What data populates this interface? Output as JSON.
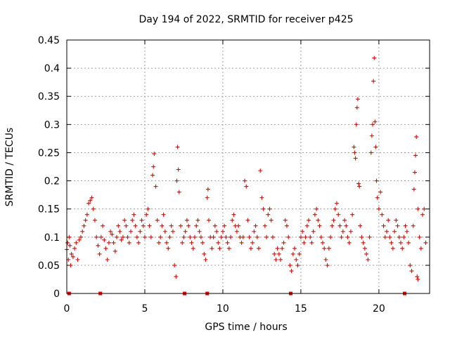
{
  "chart_data": {
    "type": "scatter",
    "title": "Day 194 of 2022, SRMTID for receiver p425",
    "xlabel": "GPS time / hours",
    "ylabel": "SRMTID / TECUs",
    "xlim": [
      0,
      23.25
    ],
    "ylim": [
      0,
      0.45
    ],
    "xticks": [
      0,
      5,
      10,
      15,
      20
    ],
    "xtick_labels": [
      "0",
      "5",
      "10",
      "15",
      "20"
    ],
    "yticks": [
      0,
      0.05,
      0.1,
      0.15,
      0.2,
      0.25,
      0.3,
      0.35,
      0.4,
      0.45
    ],
    "ytick_labels": [
      "0",
      "0.05",
      "0.1",
      "0.15",
      "0.2",
      "0.25",
      "0.3",
      "0.35",
      "0.4",
      "0.45"
    ],
    "grid": true,
    "marker": "plus",
    "color": "#e60000",
    "series": [
      {
        "name": "SRMTID",
        "points": [
          [
            0.0,
            0.078
          ],
          [
            0.05,
            0.09
          ],
          [
            0.1,
            0.06
          ],
          [
            0.15,
            0.1
          ],
          [
            0.2,
            0.085
          ],
          [
            0.25,
            0.05
          ],
          [
            0.3,
            0.07
          ],
          [
            0.4,
            0.065
          ],
          [
            0.5,
            0.08
          ],
          [
            0.6,
            0.09
          ],
          [
            0.7,
            0.06
          ],
          [
            0.8,
            0.095
          ],
          [
            0.9,
            0.1
          ],
          [
            1.0,
            0.11
          ],
          [
            1.1,
            0.12
          ],
          [
            1.2,
            0.13
          ],
          [
            1.3,
            0.14
          ],
          [
            1.4,
            0.16
          ],
          [
            1.5,
            0.165
          ],
          [
            1.6,
            0.17
          ],
          [
            1.7,
            0.15
          ],
          [
            1.8,
            0.13
          ],
          [
            1.9,
            0.1
          ],
          [
            2.0,
            0.085
          ],
          [
            2.1,
            0.07
          ],
          [
            2.2,
            0.1
          ],
          [
            2.3,
            0.12
          ],
          [
            2.4,
            0.095
          ],
          [
            2.5,
            0.08
          ],
          [
            2.6,
            0.06
          ],
          [
            2.7,
            0.09
          ],
          [
            2.8,
            0.11
          ],
          [
            2.9,
            0.105
          ],
          [
            3.0,
            0.09
          ],
          [
            3.1,
            0.075
          ],
          [
            3.2,
            0.1
          ],
          [
            3.3,
            0.12
          ],
          [
            3.4,
            0.11
          ],
          [
            3.5,
            0.095
          ],
          [
            3.6,
            0.1
          ],
          [
            3.7,
            0.13
          ],
          [
            3.8,
            0.12
          ],
          [
            3.9,
            0.1
          ],
          [
            4.0,
            0.09
          ],
          [
            4.1,
            0.11
          ],
          [
            4.2,
            0.13
          ],
          [
            4.3,
            0.14
          ],
          [
            4.4,
            0.12
          ],
          [
            4.5,
            0.1
          ],
          [
            4.6,
            0.09
          ],
          [
            4.7,
            0.11
          ],
          [
            4.8,
            0.13
          ],
          [
            4.9,
            0.12
          ],
          [
            5.0,
            0.1
          ],
          [
            5.1,
            0.14
          ],
          [
            5.2,
            0.15
          ],
          [
            5.3,
            0.12
          ],
          [
            5.4,
            0.1
          ],
          [
            5.5,
            0.21
          ],
          [
            5.55,
            0.225
          ],
          [
            5.6,
            0.248
          ],
          [
            5.7,
            0.19
          ],
          [
            5.8,
            0.13
          ],
          [
            5.9,
            0.09
          ],
          [
            6.0,
            0.1
          ],
          [
            6.1,
            0.12
          ],
          [
            6.2,
            0.14
          ],
          [
            6.3,
            0.11
          ],
          [
            6.4,
            0.09
          ],
          [
            6.5,
            0.08
          ],
          [
            6.6,
            0.1
          ],
          [
            6.7,
            0.12
          ],
          [
            6.8,
            0.11
          ],
          [
            6.9,
            0.05
          ],
          [
            7.0,
            0.03
          ],
          [
            7.05,
            0.2
          ],
          [
            7.1,
            0.26
          ],
          [
            7.15,
            0.22
          ],
          [
            7.2,
            0.18
          ],
          [
            7.3,
            0.12
          ],
          [
            7.4,
            0.09
          ],
          [
            7.5,
            0.1
          ],
          [
            7.6,
            0.11
          ],
          [
            7.7,
            0.13
          ],
          [
            7.8,
            0.12
          ],
          [
            7.9,
            0.1
          ],
          [
            8.0,
            0.09
          ],
          [
            8.1,
            0.08
          ],
          [
            8.2,
            0.1
          ],
          [
            8.3,
            0.12
          ],
          [
            8.4,
            0.13
          ],
          [
            8.5,
            0.11
          ],
          [
            8.6,
            0.1
          ],
          [
            8.7,
            0.09
          ],
          [
            8.8,
            0.07
          ],
          [
            8.9,
            0.06
          ],
          [
            9.0,
            0.17
          ],
          [
            9.05,
            0.185
          ],
          [
            9.1,
            0.13
          ],
          [
            9.2,
            0.1
          ],
          [
            9.3,
            0.08
          ],
          [
            9.4,
            0.1
          ],
          [
            9.5,
            0.12
          ],
          [
            9.6,
            0.11
          ],
          [
            9.7,
            0.09
          ],
          [
            9.8,
            0.08
          ],
          [
            9.9,
            0.1
          ],
          [
            10.0,
            0.11
          ],
          [
            10.1,
            0.12
          ],
          [
            10.2,
            0.1
          ],
          [
            10.3,
            0.09
          ],
          [
            10.4,
            0.08
          ],
          [
            10.5,
            0.1
          ],
          [
            10.6,
            0.13
          ],
          [
            10.7,
            0.14
          ],
          [
            10.8,
            0.12
          ],
          [
            10.9,
            0.11
          ],
          [
            11.0,
            0.12
          ],
          [
            11.1,
            0.1
          ],
          [
            11.2,
            0.09
          ],
          [
            11.3,
            0.1
          ],
          [
            11.4,
            0.2
          ],
          [
            11.5,
            0.19
          ],
          [
            11.6,
            0.13
          ],
          [
            11.7,
            0.1
          ],
          [
            11.8,
            0.08
          ],
          [
            11.9,
            0.09
          ],
          [
            12.0,
            0.11
          ],
          [
            12.1,
            0.12
          ],
          [
            12.2,
            0.1
          ],
          [
            12.3,
            0.08
          ],
          [
            12.4,
            0.218
          ],
          [
            12.5,
            0.17
          ],
          [
            12.6,
            0.15
          ],
          [
            12.7,
            0.12
          ],
          [
            12.8,
            0.1
          ],
          [
            12.9,
            0.14
          ],
          [
            13.0,
            0.15
          ],
          [
            13.1,
            0.13
          ],
          [
            13.2,
            0.1
          ],
          [
            13.3,
            0.07
          ],
          [
            13.4,
            0.06
          ],
          [
            13.5,
            0.08
          ],
          [
            13.6,
            0.07
          ],
          [
            13.7,
            0.06
          ],
          [
            13.8,
            0.08
          ],
          [
            13.9,
            0.09
          ],
          [
            14.0,
            0.13
          ],
          [
            14.1,
            0.12
          ],
          [
            14.2,
            0.1
          ],
          [
            14.3,
            0.05
          ],
          [
            14.4,
            0.04
          ],
          [
            14.5,
            0.07
          ],
          [
            14.6,
            0.08
          ],
          [
            14.7,
            0.06
          ],
          [
            14.8,
            0.05
          ],
          [
            14.9,
            0.07
          ],
          [
            15.0,
            0.1
          ],
          [
            15.1,
            0.11
          ],
          [
            15.2,
            0.09
          ],
          [
            15.3,
            0.1
          ],
          [
            15.4,
            0.12
          ],
          [
            15.5,
            0.13
          ],
          [
            15.6,
            0.1
          ],
          [
            15.7,
            0.09
          ],
          [
            15.8,
            0.11
          ],
          [
            15.9,
            0.14
          ],
          [
            16.0,
            0.15
          ],
          [
            16.1,
            0.13
          ],
          [
            16.2,
            0.12
          ],
          [
            16.3,
            0.1
          ],
          [
            16.4,
            0.09
          ],
          [
            16.5,
            0.08
          ],
          [
            16.6,
            0.06
          ],
          [
            16.7,
            0.05
          ],
          [
            16.8,
            0.08
          ],
          [
            16.9,
            0.1
          ],
          [
            17.0,
            0.12
          ],
          [
            17.1,
            0.13
          ],
          [
            17.2,
            0.15
          ],
          [
            17.3,
            0.16
          ],
          [
            17.4,
            0.14
          ],
          [
            17.5,
            0.12
          ],
          [
            17.6,
            0.1
          ],
          [
            17.7,
            0.11
          ],
          [
            17.8,
            0.13
          ],
          [
            17.9,
            0.12
          ],
          [
            18.0,
            0.1
          ],
          [
            18.1,
            0.09
          ],
          [
            18.2,
            0.11
          ],
          [
            18.3,
            0.14
          ],
          [
            18.4,
            0.26
          ],
          [
            18.45,
            0.25
          ],
          [
            18.5,
            0.24
          ],
          [
            18.55,
            0.3
          ],
          [
            18.6,
            0.33
          ],
          [
            18.65,
            0.345
          ],
          [
            18.7,
            0.195
          ],
          [
            18.75,
            0.19
          ],
          [
            18.8,
            0.12
          ],
          [
            18.9,
            0.1
          ],
          [
            19.0,
            0.09
          ],
          [
            19.1,
            0.08
          ],
          [
            19.2,
            0.07
          ],
          [
            19.3,
            0.06
          ],
          [
            19.4,
            0.1
          ],
          [
            19.5,
            0.25
          ],
          [
            19.55,
            0.28
          ],
          [
            19.6,
            0.3
          ],
          [
            19.65,
            0.377
          ],
          [
            19.7,
            0.418
          ],
          [
            19.75,
            0.305
          ],
          [
            19.8,
            0.26
          ],
          [
            19.85,
            0.2
          ],
          [
            19.9,
            0.17
          ],
          [
            20.0,
            0.15
          ],
          [
            20.1,
            0.18
          ],
          [
            20.2,
            0.14
          ],
          [
            20.3,
            0.12
          ],
          [
            20.4,
            0.1
          ],
          [
            20.5,
            0.11
          ],
          [
            20.6,
            0.13
          ],
          [
            20.7,
            0.1
          ],
          [
            20.8,
            0.09
          ],
          [
            20.9,
            0.08
          ],
          [
            21.0,
            0.11
          ],
          [
            21.1,
            0.13
          ],
          [
            21.2,
            0.12
          ],
          [
            21.3,
            0.1
          ],
          [
            21.4,
            0.09
          ],
          [
            21.5,
            0.08
          ],
          [
            21.6,
            0.1
          ],
          [
            21.7,
            0.12
          ],
          [
            21.8,
            0.11
          ],
          [
            21.9,
            0.09
          ],
          [
            22.0,
            0.05
          ],
          [
            22.1,
            0.04
          ],
          [
            22.2,
            0.12
          ],
          [
            22.25,
            0.185
          ],
          [
            22.3,
            0.215
          ],
          [
            22.35,
            0.245
          ],
          [
            22.4,
            0.278
          ],
          [
            22.5,
            0.15
          ],
          [
            22.6,
            0.1
          ],
          [
            22.7,
            0.08
          ],
          [
            22.8,
            0.14
          ],
          [
            22.9,
            0.15
          ],
          [
            23.0,
            0.09
          ],
          [
            22.45,
            0.03
          ],
          [
            22.5,
            0.025
          ]
        ]
      }
    ],
    "zero_markers": [
      0.15,
      2.15,
      7.55,
      9.0,
      14.35,
      21.65
    ]
  }
}
